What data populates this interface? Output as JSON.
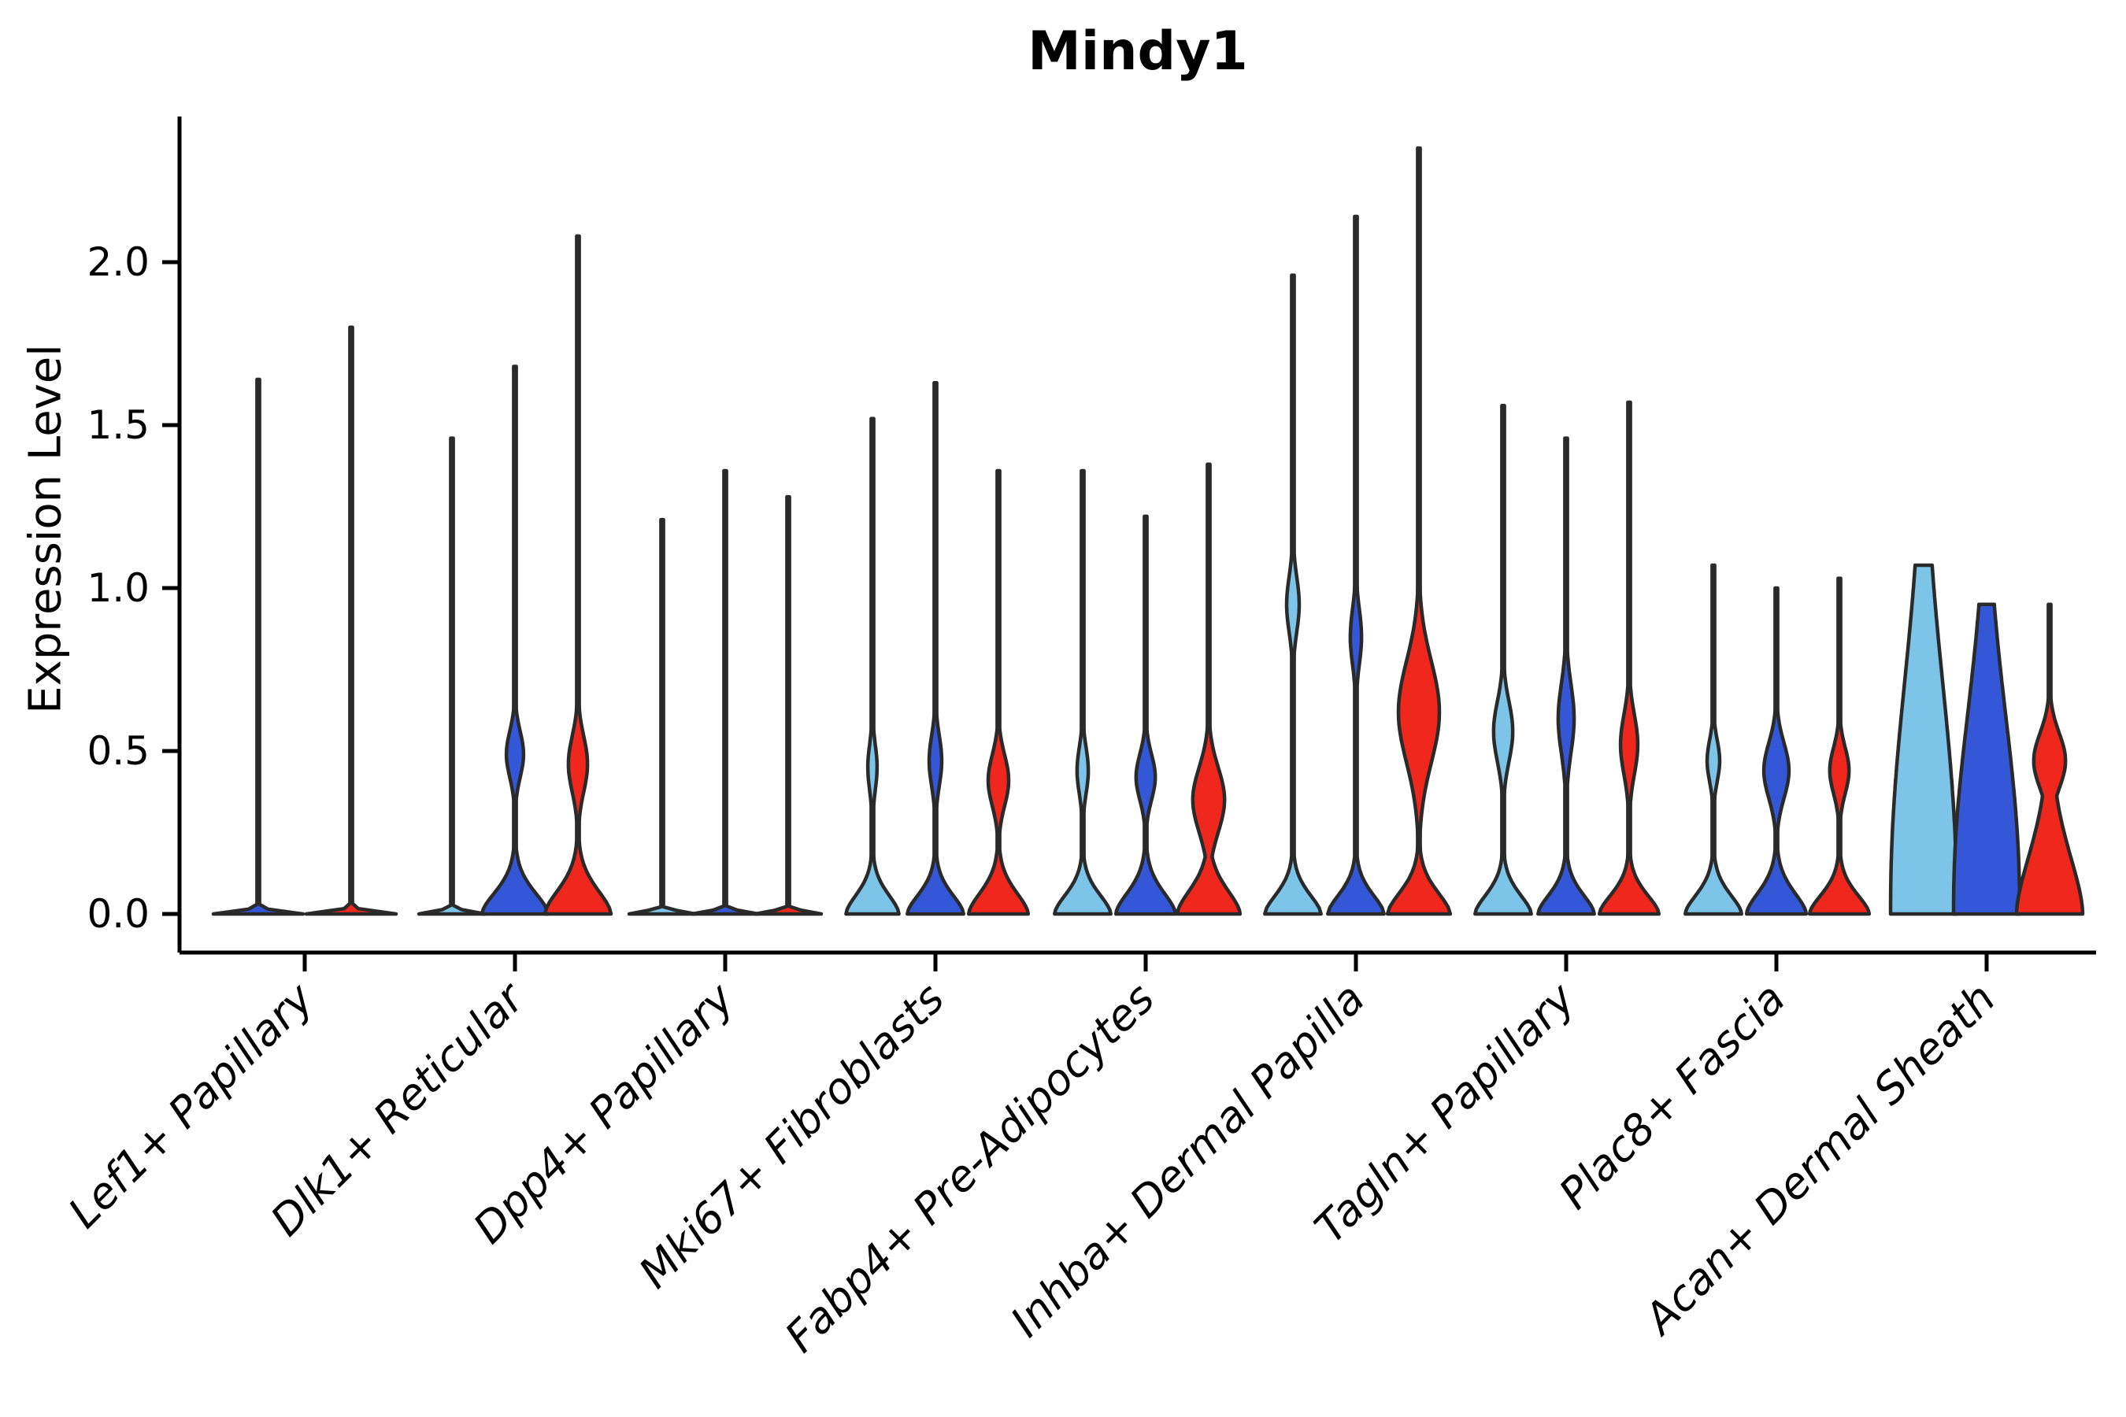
{
  "chart_data": {
    "type": "violin",
    "title": "Mindy1",
    "ylabel": "Expression Level",
    "xlabel": "",
    "ylim": [
      0,
      2.48
    ],
    "yticks": [
      0.0,
      0.5,
      1.0,
      1.5,
      2.0
    ],
    "grid": false,
    "legend_position": "none",
    "axis_color": "#000000",
    "violin_outline_color": "#2a2a2a",
    "splits": {
      "light_blue": "#7cc4e8",
      "blue": "#3457d8",
      "red": "#f0271c"
    },
    "categories": [
      "Lef1+ Papillary",
      "Dlk1+ Reticular",
      "Dpp4+ Papillary",
      "Mki67+ Fibroblasts",
      "Fabp4+ Pre-Adipocytes",
      "Inhba+ Dermal Papilla",
      "Tagln+ Papillary",
      "Plac8+ Fascia",
      "Acan+ Dermal Sheath"
    ],
    "groups": [
      {
        "label": "Lef1+ Papillary",
        "violins": [
          {
            "split": "blue",
            "max": 1.64,
            "shape": "flat"
          },
          {
            "split": "red",
            "max": 1.8,
            "shape": "flat"
          }
        ]
      },
      {
        "label": "Dlk1+ Reticular",
        "violins": [
          {
            "split": "light_blue",
            "max": 1.46,
            "shape": "flat"
          },
          {
            "split": "blue",
            "max": 1.68,
            "shape": "bulge",
            "base_width": 1.0,
            "base_spread": 0.1,
            "bulge_center": 0.49,
            "bulge_spread": 0.1,
            "bulge_width": 0.26
          },
          {
            "split": "red",
            "max": 2.08,
            "shape": "bulge",
            "base_width": 1.0,
            "base_spread": 0.11,
            "bulge_center": 0.46,
            "bulge_spread": 0.12,
            "bulge_width": 0.29
          }
        ]
      },
      {
        "label": "Dpp4+ Papillary",
        "violins": [
          {
            "split": "light_blue",
            "max": 1.21,
            "shape": "flat"
          },
          {
            "split": "blue",
            "max": 1.36,
            "shape": "flat"
          },
          {
            "split": "red",
            "max": 1.28,
            "shape": "flat"
          }
        ]
      },
      {
        "label": "Mki67+ Fibroblasts",
        "violins": [
          {
            "split": "light_blue",
            "max": 1.52,
            "shape": "bulge",
            "base_width": 0.8,
            "base_spread": 0.09,
            "bulge_center": 0.45,
            "bulge_spread": 0.1,
            "bulge_width": 0.14
          },
          {
            "split": "blue",
            "max": 1.63,
            "shape": "bulge",
            "base_width": 0.85,
            "base_spread": 0.09,
            "bulge_center": 0.47,
            "bulge_spread": 0.11,
            "bulge_width": 0.19
          },
          {
            "split": "red",
            "max": 1.36,
            "shape": "bulge",
            "base_width": 0.9,
            "base_spread": 0.1,
            "bulge_center": 0.41,
            "bulge_spread": 0.11,
            "bulge_width": 0.31
          }
        ]
      },
      {
        "label": "Fabp4+ Pre-Adipocytes",
        "violins": [
          {
            "split": "light_blue",
            "max": 1.36,
            "shape": "bulge",
            "base_width": 0.85,
            "base_spread": 0.09,
            "bulge_center": 0.44,
            "bulge_spread": 0.1,
            "bulge_width": 0.17
          },
          {
            "split": "blue",
            "max": 1.22,
            "shape": "bulge",
            "base_width": 0.9,
            "base_spread": 0.1,
            "bulge_center": 0.42,
            "bulge_spread": 0.1,
            "bulge_width": 0.29
          },
          {
            "split": "red",
            "max": 1.38,
            "shape": "bulge",
            "base_width": 0.95,
            "base_spread": 0.11,
            "bulge_center": 0.35,
            "bulge_spread": 0.14,
            "bulge_width": 0.48
          }
        ]
      },
      {
        "label": "Inhba+ Dermal Papilla",
        "violins": [
          {
            "split": "light_blue",
            "max": 1.96,
            "shape": "bulge",
            "base_width": 0.85,
            "base_spread": 0.09,
            "bulge_center": 0.95,
            "bulge_spread": 0.12,
            "bulge_width": 0.19
          },
          {
            "split": "blue",
            "max": 2.14,
            "shape": "bulge",
            "base_width": 0.85,
            "base_spread": 0.09,
            "bulge_center": 0.85,
            "bulge_spread": 0.12,
            "bulge_width": 0.17
          },
          {
            "split": "red",
            "max": 2.35,
            "shape": "bulge",
            "base_width": 0.95,
            "base_spread": 0.1,
            "bulge_center": 0.62,
            "bulge_spread": 0.22,
            "bulge_width": 0.62
          }
        ]
      },
      {
        "label": "Tagln+ Papillary",
        "violins": [
          {
            "split": "light_blue",
            "max": 1.56,
            "shape": "bulge",
            "base_width": 0.85,
            "base_spread": 0.09,
            "bulge_center": 0.56,
            "bulge_spread": 0.13,
            "bulge_width": 0.29
          },
          {
            "split": "blue",
            "max": 1.46,
            "shape": "bulge",
            "base_width": 0.85,
            "base_spread": 0.09,
            "bulge_center": 0.6,
            "bulge_spread": 0.15,
            "bulge_width": 0.24
          },
          {
            "split": "red",
            "max": 1.57,
            "shape": "bulge",
            "base_width": 0.9,
            "base_spread": 0.09,
            "bulge_center": 0.52,
            "bulge_spread": 0.13,
            "bulge_width": 0.26
          }
        ]
      },
      {
        "label": "Plac8+ Fascia",
        "violins": [
          {
            "split": "light_blue",
            "max": 1.07,
            "shape": "bulge",
            "base_width": 0.85,
            "base_spread": 0.09,
            "bulge_center": 0.47,
            "bulge_spread": 0.09,
            "bulge_width": 0.19
          },
          {
            "split": "blue",
            "max": 1.0,
            "shape": "bulge",
            "base_width": 0.9,
            "base_spread": 0.1,
            "bulge_center": 0.44,
            "bulge_spread": 0.12,
            "bulge_width": 0.38
          },
          {
            "split": "red",
            "max": 1.03,
            "shape": "bulge",
            "base_width": 0.9,
            "base_spread": 0.09,
            "bulge_center": 0.44,
            "bulge_spread": 0.1,
            "bulge_width": 0.29
          }
        ]
      },
      {
        "label": "Acan+ Dermal Sheath",
        "violins": [
          {
            "split": "light_blue",
            "max": 1.07,
            "shape": "flask",
            "base_width": 1.0,
            "base_spread": 0.93
          },
          {
            "split": "blue",
            "max": 0.95,
            "shape": "flask",
            "base_width": 1.0,
            "base_spread": 0.8
          },
          {
            "split": "red",
            "max": 0.95,
            "shape": "bulge",
            "base_width": 1.0,
            "base_spread": 0.28,
            "bulge_center": 0.47,
            "bulge_spread": 0.12,
            "bulge_width": 0.48
          }
        ]
      }
    ]
  }
}
